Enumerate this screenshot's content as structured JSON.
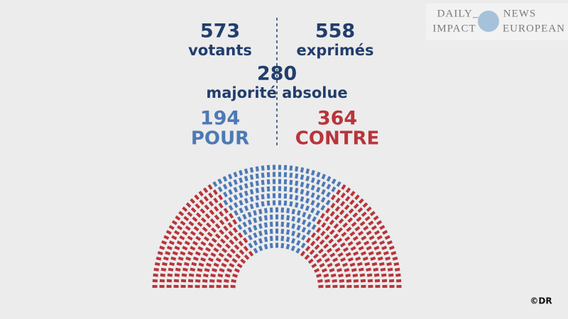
{
  "chart_data": {
    "type": "parliament",
    "stats": [
      {
        "value": 573,
        "label": "votants"
      },
      {
        "value": 558,
        "label": "exprimés"
      }
    ],
    "majority": {
      "value": 280,
      "label": "majorité absolue"
    },
    "series": [
      {
        "name": "POUR",
        "color": "#4d79b6",
        "value": 194
      },
      {
        "name": "CONTRE",
        "color": "#b8353b",
        "value": 364
      }
    ]
  },
  "logo": {
    "left_top": "DAILY_",
    "left_bottom": "IMPACT",
    "right_top": "NEWS",
    "right_bottom": "EUROPEAN"
  },
  "credit": "©DR"
}
